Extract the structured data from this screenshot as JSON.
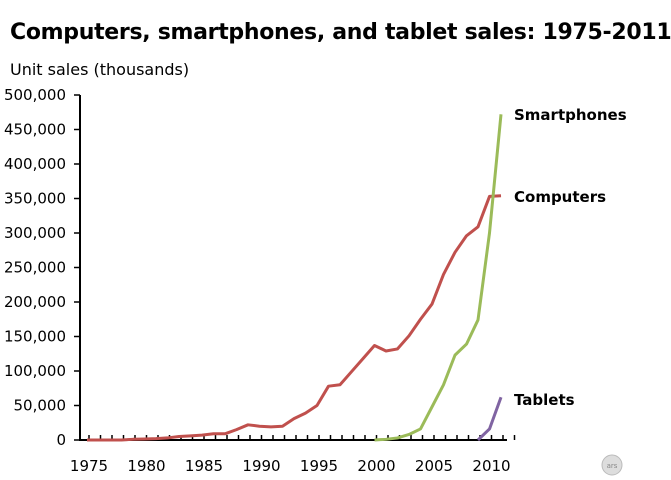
{
  "chart_data": {
    "type": "line",
    "title": "Computers, smartphones, and tablet sales:  1975-2011",
    "ylabel": "Unit sales (thousands)",
    "xlabel": "",
    "xlim": [
      1975,
      2011
    ],
    "ylim": [
      0,
      500000
    ],
    "x_ticks": [
      "1975",
      "1980",
      "1985",
      "1990",
      "1995",
      "2000",
      "2005",
      "2010"
    ],
    "y_ticks": [
      "0",
      "50,000",
      "100,000",
      "150,000",
      "200,000",
      "250,000",
      "300,000",
      "350,000",
      "400,000",
      "450,000",
      "500,000"
    ],
    "grid": false,
    "series": [
      {
        "name": "Computers",
        "color": "#c0504d",
        "x": [
          1975,
          1976,
          1977,
          1978,
          1979,
          1980,
          1981,
          1982,
          1983,
          1984,
          1985,
          1986,
          1987,
          1988,
          1989,
          1990,
          1991,
          1992,
          1993,
          1994,
          1995,
          1996,
          1997,
          1998,
          1999,
          2000,
          2001,
          2002,
          2003,
          2004,
          2005,
          2006,
          2007,
          2008,
          2009,
          2010,
          2011
        ],
        "values": [
          0,
          0,
          0,
          0,
          1000,
          1500,
          2000,
          3000,
          5000,
          6000,
          7000,
          9000,
          9000,
          15000,
          22000,
          20000,
          19000,
          20000,
          31000,
          39000,
          50000,
          78000,
          80000,
          99000,
          118000,
          137000,
          129000,
          132000,
          151000,
          175000,
          197000,
          240000,
          272000,
          296000,
          309000,
          353000,
          354000
        ]
      },
      {
        "name": "Smartphones",
        "color": "#9bbb59",
        "x": [
          2000,
          2001,
          2002,
          2003,
          2004,
          2005,
          2006,
          2007,
          2008,
          2009,
          2010,
          2011
        ],
        "values": [
          0,
          1000,
          3000,
          8000,
          16000,
          48000,
          80000,
          123000,
          139000,
          174000,
          300000,
          472000
        ]
      },
      {
        "name": "Tablets",
        "color": "#8064a2",
        "x": [
          2009,
          2010,
          2011
        ],
        "values": [
          0,
          16000,
          62000
        ]
      }
    ]
  }
}
